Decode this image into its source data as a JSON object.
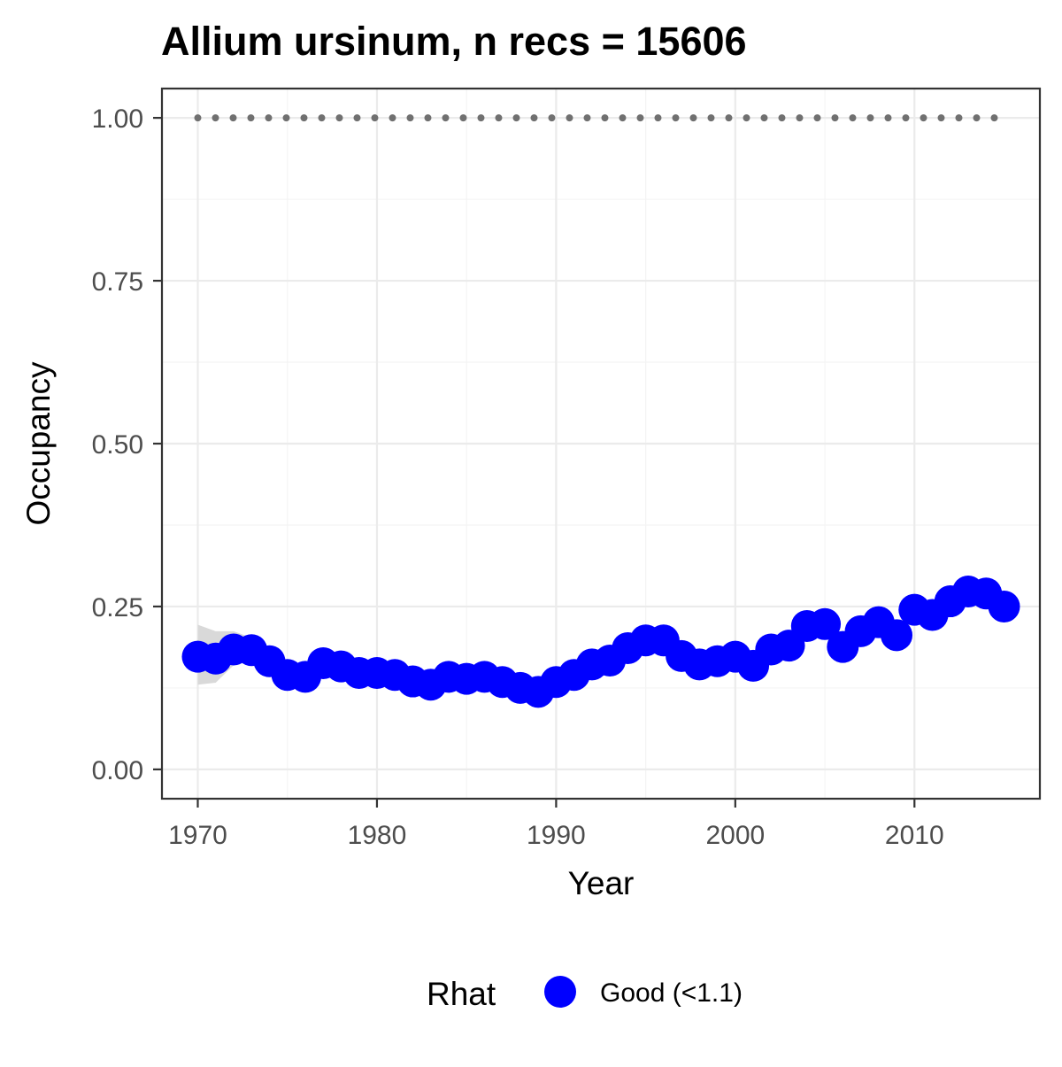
{
  "chart_data": {
    "type": "line",
    "title": "Allium ursinum, n recs = 15606",
    "xlabel": "Year",
    "ylabel": "Occupancy",
    "xlim": [
      1968,
      2017
    ],
    "ylim": [
      -0.045,
      1.045
    ],
    "x_ticks": [
      1970,
      1980,
      1990,
      2000,
      2010
    ],
    "x_tick_labels": [
      "1970",
      "1980",
      "1990",
      "2000",
      "2010"
    ],
    "y_ticks": [
      0,
      0.25,
      0.5,
      0.75,
      1
    ],
    "y_tick_labels": [
      "0.00",
      "0.25",
      "0.50",
      "0.75",
      "1.00"
    ],
    "grid": true,
    "legend": {
      "title": "Rhat",
      "placement": "bottom",
      "entries": [
        {
          "label": "Good (<1.1)",
          "color": "#0000ff"
        }
      ]
    },
    "colors": {
      "points": "#0000ff",
      "ribbon": "#d9d9d9",
      "reference": "#707070",
      "panel_border": "#333333",
      "grid_major": "#ebebeb",
      "grid_minor": "#f4f4f4"
    },
    "x": [
      1970,
      1971,
      1972,
      1973,
      1974,
      1975,
      1976,
      1977,
      1978,
      1979,
      1980,
      1981,
      1982,
      1983,
      1984,
      1985,
      1986,
      1987,
      1988,
      1989,
      1990,
      1991,
      1992,
      1993,
      1994,
      1995,
      1996,
      1997,
      1998,
      1999,
      2000,
      2001,
      2002,
      2003,
      2004,
      2005,
      2006,
      2007,
      2008,
      2009,
      2010,
      2011,
      2012,
      2013,
      2014,
      2015
    ],
    "series": [
      {
        "values": [
          0.173,
          0.17,
          0.184,
          0.183,
          0.166,
          0.145,
          0.142,
          0.163,
          0.158,
          0.148,
          0.148,
          0.145,
          0.135,
          0.13,
          0.142,
          0.139,
          0.142,
          0.134,
          0.125,
          0.119,
          0.134,
          0.145,
          0.161,
          0.167,
          0.186,
          0.198,
          0.198,
          0.174,
          0.161,
          0.166,
          0.173,
          0.159,
          0.184,
          0.19,
          0.22,
          0.223,
          0.188,
          0.212,
          0.226,
          0.206,
          0.245,
          0.237,
          0.258,
          0.273,
          0.27,
          0.25
        ],
        "lower": [
          0.13,
          0.133,
          0.16,
          0.166,
          0.152,
          0.134,
          0.132,
          0.151,
          0.148,
          0.139,
          0.139,
          0.136,
          0.127,
          0.122,
          0.133,
          0.131,
          0.133,
          0.126,
          0.117,
          0.111,
          0.125,
          0.136,
          0.151,
          0.157,
          0.175,
          0.186,
          0.186,
          0.163,
          0.151,
          0.156,
          0.162,
          0.148,
          0.173,
          0.179,
          0.207,
          0.21,
          0.176,
          0.2,
          0.213,
          0.194,
          0.231,
          0.224,
          0.243,
          0.258,
          0.255,
          0.236
        ],
        "upper": [
          0.222,
          0.212,
          0.212,
          0.202,
          0.182,
          0.158,
          0.154,
          0.176,
          0.17,
          0.159,
          0.159,
          0.156,
          0.145,
          0.14,
          0.152,
          0.149,
          0.152,
          0.144,
          0.135,
          0.128,
          0.144,
          0.155,
          0.172,
          0.178,
          0.198,
          0.211,
          0.211,
          0.186,
          0.172,
          0.177,
          0.184,
          0.17,
          0.196,
          0.203,
          0.234,
          0.237,
          0.201,
          0.225,
          0.24,
          0.219,
          0.26,
          0.251,
          0.273,
          0.289,
          0.286,
          0.265
        ]
      }
    ],
    "reference_line": {
      "y": 1.0,
      "style": "dotted"
    }
  }
}
